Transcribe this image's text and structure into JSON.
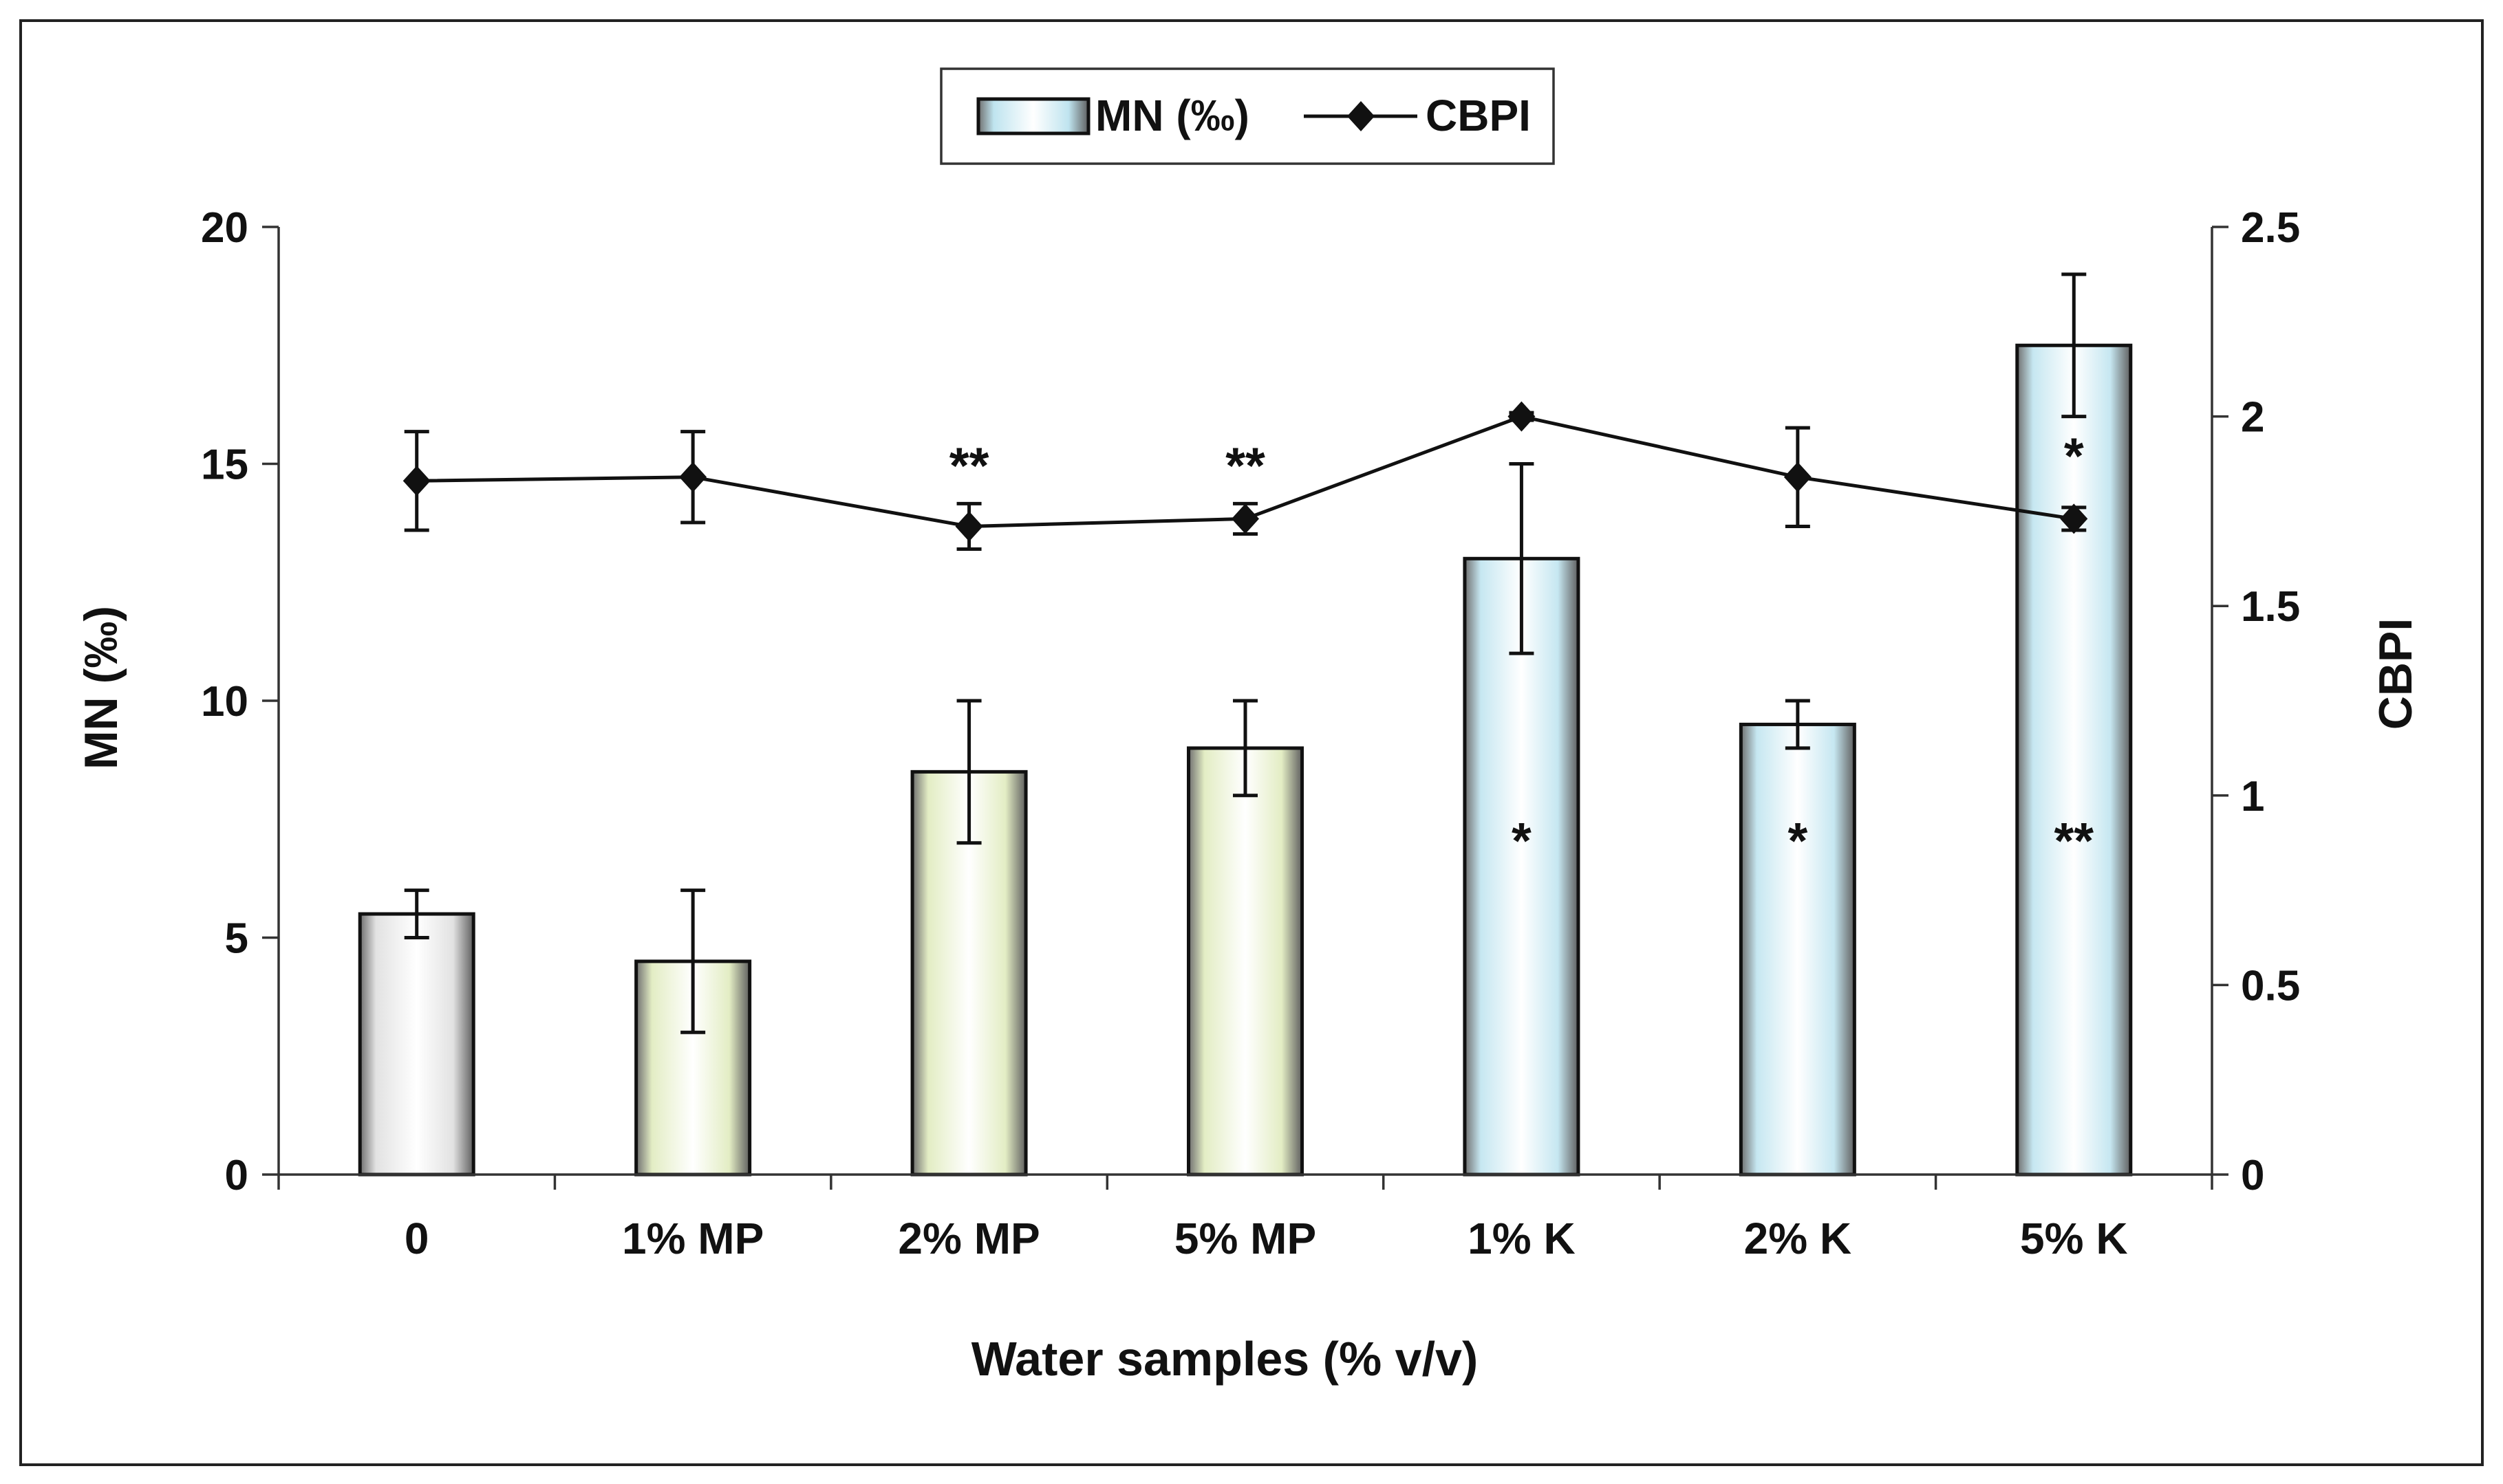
{
  "chart_data": {
    "type": "bar",
    "categories": [
      "0",
      "1% MP",
      "2% MP",
      "5% MP",
      "1% K",
      "2% K",
      "5% K"
    ],
    "xlabel": "Water samples (% v/v)",
    "ylabel": "MN (‰)",
    "y2label": "CBPI",
    "ylim": [
      0,
      20
    ],
    "y2lim": [
      0,
      2.5
    ],
    "yticks": [
      "0",
      "5",
      "10",
      "15",
      "20"
    ],
    "y2ticks": [
      "0",
      "0.5",
      "1",
      "1.5",
      "2",
      "2.5"
    ],
    "legend_position": "top-center",
    "series": [
      {
        "name": "MN (‰)",
        "kind": "bar",
        "values": [
          5.5,
          4.5,
          8.5,
          9.0,
          13.0,
          9.5,
          17.5
        ],
        "errors": [
          0.5,
          1.5,
          1.5,
          1.0,
          2.0,
          0.5,
          1.5
        ],
        "annotations": [
          "",
          "",
          "",
          "",
          "*",
          "*",
          "**"
        ],
        "colors": [
          "#e2e2e2",
          "#e3edc4",
          "#e3edc4",
          "#e3edc4",
          "#c6e7f1",
          "#c6e7f1",
          "#c6e7f1"
        ],
        "legend_color": "#bfe4ef"
      },
      {
        "name": "CBPI",
        "kind": "line",
        "axis": "right",
        "values": [
          1.83,
          1.84,
          1.71,
          1.73,
          2.0,
          1.84,
          1.73
        ],
        "errors": [
          0.13,
          0.12,
          0.06,
          0.04,
          0.01,
          0.13,
          0.03
        ],
        "annotations": [
          "",
          "",
          "**",
          "**",
          "",
          "",
          "*"
        ],
        "color": "#111111"
      }
    ]
  }
}
